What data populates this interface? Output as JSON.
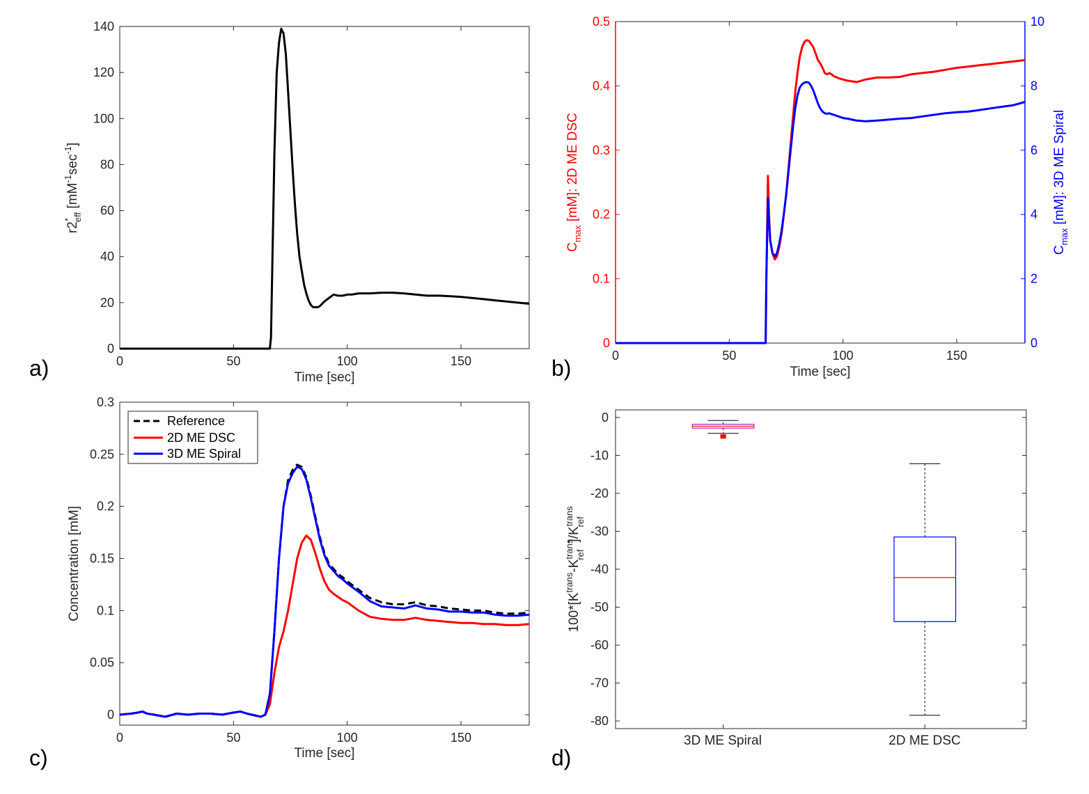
{
  "colors": {
    "black": "#000000",
    "red": "#ff0000",
    "blue": "#0000ff",
    "box_purple": "#9c27b0",
    "axis": "#262626",
    "tick": "#262626"
  },
  "chart_data": [
    {
      "id": "a",
      "panel_label": "a)",
      "type": "line",
      "xlabel": "Time [sec]",
      "ylabel": {
        "base": "r2",
        "sup1": "*",
        "sub1": "eff",
        "mid": " [mM",
        "sup2": "-1",
        "mid2": "sec",
        "sup3": "-1",
        "end": "]"
      },
      "xlim": [
        0,
        180
      ],
      "ylim": [
        0,
        140
      ],
      "xticks": [
        "0",
        "50",
        "100",
        "150"
      ],
      "xtick_values": [
        0,
        50,
        100,
        150
      ],
      "yticks": [
        "0",
        "20",
        "40",
        "60",
        "80",
        "100",
        "120",
        "140"
      ],
      "ytick_values": [
        0,
        20,
        40,
        60,
        80,
        100,
        120,
        140
      ],
      "series": [
        {
          "name": "r2*eff",
          "color": "#000000",
          "x": [
            0,
            66,
            66.5,
            68,
            69,
            70,
            71,
            72,
            73,
            74,
            75,
            76,
            77,
            78,
            79,
            80,
            81,
            82,
            83,
            84,
            85,
            86,
            87,
            88,
            89,
            90,
            92,
            94,
            96,
            98,
            100,
            102,
            105,
            110,
            115,
            120,
            125,
            130,
            135,
            140,
            145,
            150,
            155,
            160,
            165,
            170,
            175,
            180
          ],
          "y": [
            0,
            0,
            5,
            85,
            120,
            133,
            139,
            137,
            128,
            112,
            95,
            78,
            63,
            50,
            40,
            34,
            28,
            24,
            21,
            19,
            18,
            18,
            18,
            18.5,
            19.5,
            20.5,
            22,
            23.5,
            23,
            23,
            23.5,
            23.5,
            24,
            24,
            24.3,
            24.3,
            24,
            23.5,
            23,
            23,
            22.8,
            22.5,
            22,
            21.5,
            21,
            20.5,
            20,
            19.5
          ]
        }
      ]
    },
    {
      "id": "b",
      "panel_label": "b)",
      "type": "line",
      "xlabel": "Time [sec]",
      "ylabel_left": {
        "base": "C",
        "sub": "max",
        "rest": " [mM]: 2D ME DSC"
      },
      "ylabel_right": {
        "base": "C",
        "sub": "max",
        "rest": " [mM]: 3D ME Spiral"
      },
      "xlim": [
        0,
        180
      ],
      "ylim_left": [
        0,
        0.5
      ],
      "ylim_right": [
        0,
        10
      ],
      "xticks": [
        "0",
        "50",
        "100",
        "150"
      ],
      "xtick_values": [
        0,
        50,
        100,
        150
      ],
      "yticks_left": [
        "0",
        "0.1",
        "0.2",
        "0.3",
        "0.4",
        "0.5"
      ],
      "ytick_values_left": [
        0,
        0.1,
        0.2,
        0.3,
        0.4,
        0.5
      ],
      "yticks_right": [
        "0",
        "2",
        "4",
        "6",
        "8",
        "10"
      ],
      "ytick_values_right": [
        0,
        2,
        4,
        6,
        8,
        10
      ],
      "series": [
        {
          "name": "2D ME DSC",
          "axis": "left",
          "color": "#ff0000",
          "x": [
            0,
            66,
            66.3,
            67,
            67.5,
            68,
            69,
            70,
            71,
            72,
            73,
            74,
            75,
            76,
            77,
            78,
            79,
            80,
            81,
            82,
            83,
            84,
            85,
            86,
            87,
            88,
            89,
            90,
            91,
            92,
            93,
            94,
            95,
            96,
            98,
            100,
            102,
            104,
            106,
            110,
            115,
            120,
            125,
            130,
            135,
            140,
            145,
            150,
            155,
            160,
            165,
            170,
            175,
            180
          ],
          "y": [
            0,
            0,
            0.1,
            0.26,
            0.2,
            0.16,
            0.14,
            0.13,
            0.135,
            0.15,
            0.17,
            0.2,
            0.23,
            0.27,
            0.31,
            0.35,
            0.39,
            0.42,
            0.445,
            0.46,
            0.468,
            0.471,
            0.47,
            0.465,
            0.46,
            0.45,
            0.44,
            0.435,
            0.428,
            0.42,
            0.418,
            0.42,
            0.418,
            0.415,
            0.412,
            0.41,
            0.408,
            0.407,
            0.406,
            0.41,
            0.413,
            0.413,
            0.414,
            0.418,
            0.42,
            0.422,
            0.425,
            0.428,
            0.43,
            0.432,
            0.434,
            0.436,
            0.438,
            0.44
          ]
        },
        {
          "name": "3D ME Spiral",
          "axis": "right",
          "color": "#0000ff",
          "x": [
            0,
            66,
            66.3,
            67,
            67.5,
            68,
            69,
            70,
            71,
            72,
            73,
            74,
            75,
            76,
            77,
            78,
            79,
            80,
            81,
            82,
            83,
            84,
            85,
            86,
            87,
            88,
            89,
            90,
            91,
            92,
            93,
            94,
            95,
            96,
            98,
            100,
            102,
            104,
            106,
            110,
            115,
            120,
            125,
            130,
            135,
            140,
            145,
            150,
            155,
            160,
            165,
            170,
            175,
            180
          ],
          "y": [
            0,
            0,
            2,
            4.5,
            3.8,
            3.2,
            2.8,
            2.7,
            2.8,
            3.1,
            3.5,
            4.0,
            4.6,
            5.3,
            6.0,
            6.7,
            7.3,
            7.7,
            7.95,
            8.05,
            8.1,
            8.12,
            8.1,
            8.0,
            7.85,
            7.65,
            7.45,
            7.3,
            7.2,
            7.15,
            7.13,
            7.15,
            7.12,
            7.1,
            7.05,
            7.0,
            6.98,
            6.95,
            6.92,
            6.9,
            6.92,
            6.95,
            6.98,
            7.0,
            7.05,
            7.1,
            7.15,
            7.18,
            7.2,
            7.25,
            7.3,
            7.35,
            7.4,
            7.5
          ]
        }
      ]
    },
    {
      "id": "c",
      "panel_label": "c)",
      "type": "line",
      "xlabel": "Time [sec]",
      "ylabel": "Concentration [mM]",
      "xlim": [
        0,
        180
      ],
      "ylim": [
        -0.01,
        0.3
      ],
      "xticks": [
        "0",
        "50",
        "100",
        "150"
      ],
      "xtick_values": [
        0,
        50,
        100,
        150
      ],
      "yticks": [
        "0",
        "0.05",
        "0.1",
        "0.15",
        "0.2",
        "0.25",
        "0.3"
      ],
      "ytick_values": [
        0,
        0.05,
        0.1,
        0.15,
        0.2,
        0.25,
        0.3
      ],
      "legend": {
        "position": "top-left",
        "entries": [
          "Reference",
          "2D ME DSC",
          "3D ME Spiral"
        ]
      },
      "series": [
        {
          "name": "Reference",
          "color": "#000000",
          "dash": true,
          "x": [
            0,
            5,
            8,
            10,
            12,
            15,
            20,
            25,
            30,
            35,
            40,
            45,
            50,
            53,
            56,
            60,
            62,
            64,
            66,
            68,
            70,
            72,
            74,
            76,
            78,
            80,
            82,
            84,
            86,
            88,
            90,
            92,
            94,
            96,
            98,
            100,
            105,
            110,
            115,
            120,
            125,
            130,
            135,
            140,
            145,
            150,
            155,
            160,
            165,
            170,
            175,
            180
          ],
          "y": [
            0,
            0.001,
            0.002,
            0.003,
            0.001,
            0,
            -0.002,
            0.001,
            0,
            0.001,
            0.001,
            0,
            0.002,
            0.003,
            0.001,
            -0.001,
            -0.002,
            0,
            0.02,
            0.08,
            0.15,
            0.2,
            0.225,
            0.235,
            0.24,
            0.238,
            0.228,
            0.21,
            0.19,
            0.17,
            0.155,
            0.145,
            0.14,
            0.135,
            0.132,
            0.128,
            0.12,
            0.112,
            0.108,
            0.106,
            0.106,
            0.108,
            0.105,
            0.104,
            0.102,
            0.101,
            0.1,
            0.1,
            0.098,
            0.097,
            0.097,
            0.098
          ]
        },
        {
          "name": "2D ME DSC",
          "color": "#ff0000",
          "dash": false,
          "x": [
            0,
            5,
            8,
            10,
            12,
            15,
            20,
            25,
            30,
            35,
            40,
            45,
            50,
            53,
            56,
            60,
            62,
            64,
            66,
            68,
            70,
            72,
            74,
            76,
            78,
            80,
            82,
            84,
            86,
            88,
            90,
            92,
            94,
            96,
            98,
            100,
            105,
            110,
            115,
            120,
            125,
            130,
            135,
            140,
            145,
            150,
            155,
            160,
            165,
            170,
            175,
            180
          ],
          "y": [
            0,
            0.001,
            0.002,
            0.003,
            0.001,
            0,
            -0.002,
            0.001,
            0,
            0.001,
            0.001,
            0,
            0.002,
            0.003,
            0.001,
            -0.001,
            -0.002,
            0,
            0.01,
            0.04,
            0.065,
            0.08,
            0.1,
            0.125,
            0.15,
            0.165,
            0.172,
            0.168,
            0.155,
            0.14,
            0.128,
            0.12,
            0.116,
            0.113,
            0.11,
            0.108,
            0.1,
            0.094,
            0.092,
            0.091,
            0.091,
            0.093,
            0.091,
            0.09,
            0.089,
            0.088,
            0.088,
            0.087,
            0.087,
            0.086,
            0.086,
            0.087
          ]
        },
        {
          "name": "3D ME Spiral",
          "color": "#0000ff",
          "dash": false,
          "x": [
            0,
            5,
            8,
            10,
            12,
            15,
            20,
            25,
            30,
            35,
            40,
            45,
            50,
            53,
            56,
            60,
            62,
            64,
            66,
            68,
            70,
            72,
            74,
            76,
            78,
            80,
            82,
            84,
            86,
            88,
            90,
            92,
            94,
            96,
            98,
            100,
            105,
            110,
            115,
            120,
            125,
            130,
            135,
            140,
            145,
            150,
            155,
            160,
            165,
            170,
            175,
            180
          ],
          "y": [
            0,
            0.001,
            0.002,
            0.003,
            0.001,
            0,
            -0.002,
            0.001,
            0,
            0.001,
            0.001,
            0,
            0.002,
            0.003,
            0.001,
            -0.001,
            -0.002,
            0,
            0.02,
            0.08,
            0.15,
            0.2,
            0.222,
            0.232,
            0.238,
            0.236,
            0.226,
            0.208,
            0.188,
            0.168,
            0.153,
            0.143,
            0.138,
            0.133,
            0.13,
            0.126,
            0.118,
            0.109,
            0.104,
            0.103,
            0.102,
            0.105,
            0.102,
            0.101,
            0.099,
            0.099,
            0.098,
            0.098,
            0.096,
            0.095,
            0.095,
            0.096
          ]
        }
      ]
    },
    {
      "id": "d",
      "panel_label": "d)",
      "type": "box",
      "ylabel": {
        "base": "100*[K",
        "sup1": "trans",
        "mid": "-K",
        "sup2": "trans",
        "sub2": "ref",
        "mid2": "]/K",
        "sup3": "trans",
        "sub3": "ref"
      },
      "ylim": [
        -82,
        2
      ],
      "yticks": [
        "0",
        "-10",
        "-20",
        "-30",
        "-40",
        "-50",
        "-60",
        "-70",
        "-80"
      ],
      "ytick_values": [
        0,
        -10,
        -20,
        -30,
        -40,
        -50,
        -60,
        -70,
        -80
      ],
      "categories": [
        "3D ME Spiral",
        "2D ME DSC"
      ],
      "boxes": [
        {
          "name": "3D ME Spiral",
          "whisker_low": -4.2,
          "q1": -2.8,
          "median": -2.3,
          "q3": -1.8,
          "whisker_high": -0.8,
          "outliers": [
            -4.8,
            -5.0,
            -5.2
          ],
          "box_color": "#9c27b0",
          "median_color": "#ff0000"
        },
        {
          "name": "2D ME DSC",
          "whisker_low": -78.5,
          "q1": -53.8,
          "median": -42.2,
          "q3": -31.5,
          "whisker_high": -12.2,
          "outliers": [],
          "box_color": "#0000ff",
          "median_color": "#ff0000"
        }
      ]
    }
  ]
}
